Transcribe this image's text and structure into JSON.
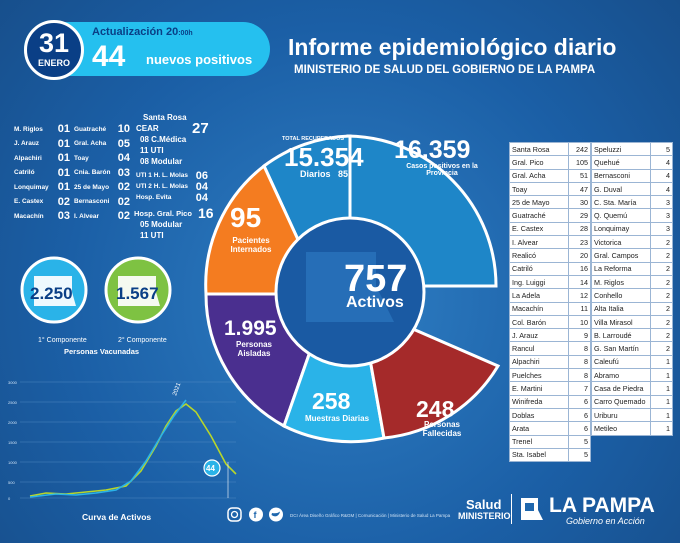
{
  "header": {
    "day": "31",
    "month": "ENERO",
    "update_label": "Actualización",
    "update_time": "20",
    "update_suffix": ":00h",
    "new_positives": "44",
    "new_positives_label": "nuevos positivos",
    "title": "Informe epidemiológico diario",
    "subtitle": "MINISTERIO DE SALUD DEL GOBIERNO DE LA PAMPA"
  },
  "localities_left": [
    {
      "name": "M. Riglos",
      "value": "01"
    },
    {
      "name": "J. Arauz",
      "value": "01"
    },
    {
      "name": "Alpachiri",
      "value": "01"
    },
    {
      "name": "Catriló",
      "value": "01"
    },
    {
      "name": "Lonquimay",
      "value": "01"
    },
    {
      "name": "E. Castex",
      "value": "02"
    },
    {
      "name": "Macachín",
      "value": "03"
    }
  ],
  "localities_mid": [
    {
      "name": "Guatraché",
      "value": "10"
    },
    {
      "name": "Gral. Acha",
      "value": "05"
    },
    {
      "name": "Toay",
      "value": "04"
    },
    {
      "name": "Cnia. Barón",
      "value": "03"
    },
    {
      "name": "25 de Mayo",
      "value": "02"
    },
    {
      "name": "Bernasconi",
      "value": "02"
    },
    {
      "name": "I. Alvear",
      "value": "02"
    }
  ],
  "santa_rosa": {
    "title": "Santa Rosa",
    "cear_label": "CEAR",
    "cear_value": "27",
    "lines": [
      "08 C.Médica",
      "11 UTI",
      "08 Modular"
    ],
    "molas": [
      {
        "name": "UTI 1 H. L. Molas",
        "value": "06"
      },
      {
        "name": "UTI 2 H. L. Molas",
        "value": "04"
      },
      {
        "name": "Hosp. Evita",
        "value": "04"
      }
    ],
    "pico_label": "Hosp. Gral. Pico",
    "pico_value": "16",
    "pico_lines": [
      "05 Modular",
      "11 UTI"
    ]
  },
  "vaccines": {
    "first": "2.250",
    "first_label": "1° Componente",
    "second": "1.567",
    "second_label": "2° Componente",
    "caption": "Personas Vacunadas"
  },
  "curve": {
    "label": "Curva de Activos",
    "peak": "2021",
    "current": "44",
    "y_ticks": [
      "3000",
      "2500",
      "2000",
      "1500",
      "1000",
      "500",
      "0"
    ]
  },
  "wheel": {
    "recovered_label": "TOTAL RECUPERADOS",
    "recovered": "15.354",
    "recovered_daily_label": "Diarios",
    "recovered_daily": "85",
    "cases": "16.359",
    "cases_label": "Casos positivos en la Provincia",
    "hospital": "95",
    "hospital_label": "Pacientes Internados",
    "active": "757",
    "active_label": "Activos",
    "isolated": "1.995",
    "isolated_label": "Personas Aisladas",
    "samples": "258",
    "samples_label": "Muestras Diarias",
    "deceased": "248",
    "deceased_label": "Personas Fallecidas"
  },
  "table_left": [
    [
      "Santa Rosa",
      "242"
    ],
    [
      "Gral. Pico",
      "105"
    ],
    [
      "Gral. Acha",
      "51"
    ],
    [
      "Toay",
      "47"
    ],
    [
      "25 de Mayo",
      "30"
    ],
    [
      "Guatraché",
      "29"
    ],
    [
      "E. Castex",
      "28"
    ],
    [
      "I. Alvear",
      "23"
    ],
    [
      "Realicó",
      "20"
    ],
    [
      "Catriló",
      "16"
    ],
    [
      "Ing. Luiggi",
      "14"
    ],
    [
      "La Adela",
      "12"
    ],
    [
      "Macachín",
      "11"
    ],
    [
      "Col. Barón",
      "10"
    ],
    [
      "J. Arauz",
      "9"
    ],
    [
      "Rancul",
      "8"
    ],
    [
      "Alpachiri",
      "8"
    ],
    [
      "Puelches",
      "8"
    ],
    [
      "E. Martini",
      "7"
    ],
    [
      "Winifreda",
      "6"
    ],
    [
      "Doblas",
      "6"
    ],
    [
      "Arata",
      "6"
    ],
    [
      "Trenel",
      "5"
    ],
    [
      "Sta. Isabel",
      "5"
    ]
  ],
  "table_right": [
    [
      "Speluzzi",
      "5"
    ],
    [
      "Quehué",
      "4"
    ],
    [
      "Bernasconi",
      "4"
    ],
    [
      "G. Duval",
      "4"
    ],
    [
      "C. Sta. María",
      "3"
    ],
    [
      "Q. Quemú",
      "3"
    ],
    [
      "Lonquimay",
      "3"
    ],
    [
      "Victorica",
      "2"
    ],
    [
      "Gral. Campos",
      "2"
    ],
    [
      "La Reforma",
      "2"
    ],
    [
      "M. Riglos",
      "2"
    ],
    [
      "Conhello",
      "2"
    ],
    [
      "Alta Italia",
      "2"
    ],
    [
      "Villa Mirasol",
      "2"
    ],
    [
      "B. Larroudé",
      "2"
    ],
    [
      "G. San Martín",
      "2"
    ],
    [
      "Caleufú",
      "1"
    ],
    [
      "Abramo",
      "1"
    ],
    [
      "Casa de Piedra",
      "1"
    ],
    [
      "Carro Quemado",
      "1"
    ],
    [
      "Uriburu",
      "1"
    ],
    [
      "Metileo",
      "1"
    ]
  ],
  "footer": {
    "credits": "DCI Área Diseño Gráfico R&GM | Comunicación | Ministerio de Salud La Pampa",
    "salud": "Salud",
    "ministerio": "MINISTERIO",
    "brand": "LA PAMPA",
    "brand_tag": "Gobierno en Acción"
  },
  "colors": {
    "recovered": "#1e86c8",
    "cases": "#1aa3e0",
    "hospital": "#f47c20",
    "isolated": "#4a2f8f",
    "samples": "#2ab3e8",
    "deceased": "#a52a2a",
    "active": "#1a5aa3"
  }
}
